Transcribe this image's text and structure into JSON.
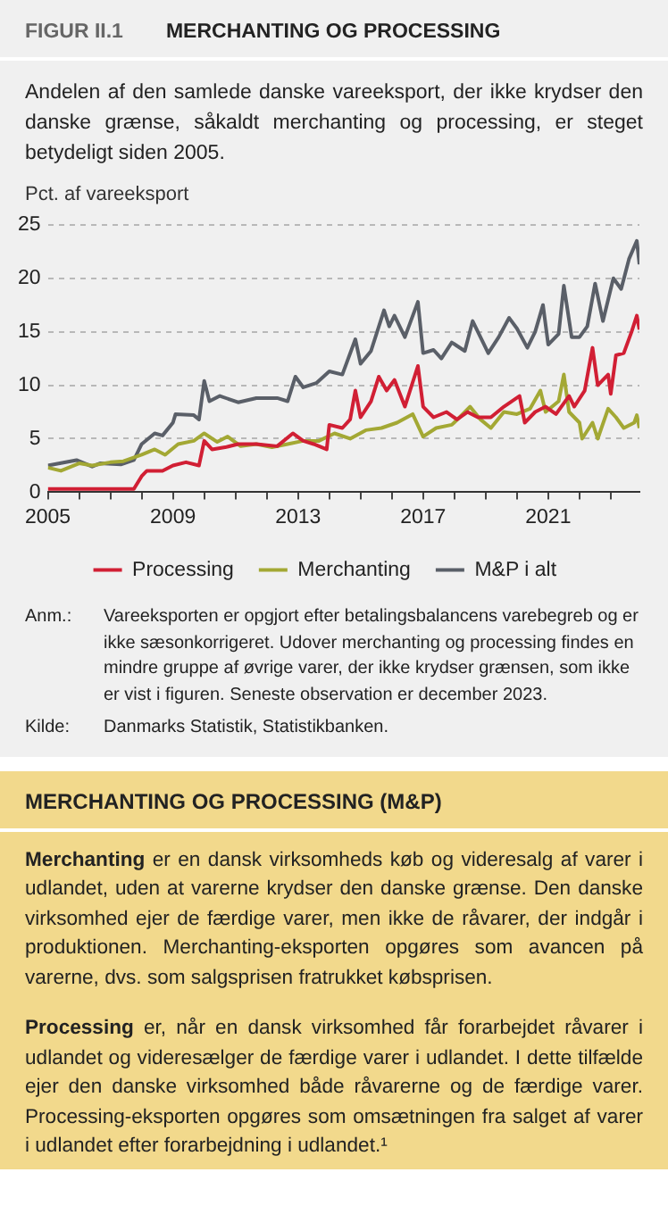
{
  "chart_data": {
    "type": "line",
    "title": "MERCHANTING OG PROCESSING",
    "subtitle": "Andelen af den samlede danske vareeksport, der ikke krydser den danske grænse, såkaldt merchanting og processing, er steget betydeligt siden 2005.",
    "ylabel": "Pct. af vareeksport",
    "xlim": [
      "2005-01",
      "2023-12"
    ],
    "xticks": [
      {
        "value": "2005",
        "label": "2005"
      },
      {
        "value": "2006",
        "label": null
      },
      {
        "value": "2007",
        "label": null
      },
      {
        "value": "2008",
        "label": null
      },
      {
        "value": "2009",
        "label": "2009"
      },
      {
        "value": "2010",
        "label": null
      },
      {
        "value": "2011",
        "label": null
      },
      {
        "value": "2012",
        "label": null
      },
      {
        "value": "2013",
        "label": "2013"
      },
      {
        "value": "2014",
        "label": null
      },
      {
        "value": "2015",
        "label": null
      },
      {
        "value": "2016",
        "label": null
      },
      {
        "value": "2017",
        "label": "2017"
      },
      {
        "value": "2018",
        "label": null
      },
      {
        "value": "2019",
        "label": null
      },
      {
        "value": "2020",
        "label": null
      },
      {
        "value": "2021",
        "label": "2021"
      },
      {
        "value": "2022",
        "label": null
      },
      {
        "value": "2023",
        "label": null
      }
    ],
    "ylim": [
      0,
      25
    ],
    "yticks": [
      0,
      5,
      10,
      15,
      20,
      25
    ],
    "grid": "y",
    "legend": "bottom",
    "series": [
      {
        "name": "Processing",
        "color": "#d11f34",
        "x": [
          "2005-01",
          "2006-06",
          "2007-10",
          "2008-01",
          "2008-03",
          "2008-09",
          "2009-01",
          "2009-06",
          "2009-11",
          "2010-01",
          "2010-04",
          "2010-09",
          "2011-02",
          "2011-09",
          "2012-05",
          "2012-11",
          "2013-03",
          "2013-07",
          "2013-12",
          "2014-01",
          "2014-06",
          "2014-09",
          "2014-11",
          "2015-01",
          "2015-05",
          "2015-08",
          "2015-11",
          "2016-02",
          "2016-06",
          "2016-11",
          "2017-01",
          "2017-05",
          "2017-10",
          "2018-02",
          "2018-06",
          "2018-10",
          "2019-03",
          "2019-08",
          "2019-11",
          "2020-02",
          "2020-04",
          "2020-08",
          "2020-12",
          "2021-04",
          "2021-09",
          "2021-11",
          "2022-03",
          "2022-06",
          "2022-08",
          "2022-12",
          "2023-01",
          "2023-03",
          "2023-06",
          "2023-09",
          "2023-11",
          "2023-12"
        ],
        "values": [
          0.3,
          0.3,
          0.3,
          1.5,
          2.0,
          2.0,
          2.5,
          2.8,
          2.5,
          4.8,
          4.0,
          4.2,
          4.5,
          4.5,
          4.3,
          5.5,
          4.8,
          4.5,
          4.0,
          6.3,
          6.0,
          6.8,
          9.5,
          7.0,
          8.5,
          10.8,
          9.5,
          10.5,
          8.0,
          11.8,
          8.0,
          7.0,
          7.5,
          6.8,
          7.5,
          7.0,
          7.0,
          8.0,
          8.5,
          9.0,
          6.5,
          7.5,
          8.0,
          7.3,
          9.0,
          8.0,
          9.5,
          13.5,
          10.0,
          11.0,
          9.2,
          12.8,
          13.0,
          15.0,
          16.5,
          15.2
        ]
      },
      {
        "name": "Merchanting",
        "color": "#a3a834",
        "x": [
          "2005-01",
          "2005-06",
          "2006-01",
          "2006-06",
          "2007-01",
          "2007-06",
          "2008-01",
          "2008-06",
          "2008-10",
          "2009-03",
          "2009-09",
          "2010-01",
          "2010-06",
          "2010-10",
          "2011-03",
          "2011-09",
          "2012-03",
          "2012-09",
          "2013-03",
          "2013-09",
          "2014-03",
          "2014-09",
          "2015-03",
          "2015-09",
          "2016-03",
          "2016-09",
          "2017-01",
          "2017-06",
          "2017-12",
          "2018-03",
          "2018-07",
          "2018-11",
          "2019-03",
          "2019-08",
          "2020-01",
          "2020-06",
          "2020-10",
          "2020-12",
          "2021-05",
          "2021-07",
          "2021-09",
          "2022-01",
          "2022-02",
          "2022-06",
          "2022-08",
          "2022-12",
          "2023-03",
          "2023-06",
          "2023-10",
          "2023-11",
          "2023-12"
        ],
        "values": [
          2.3,
          2.0,
          2.7,
          2.5,
          2.8,
          2.9,
          3.5,
          4.0,
          3.5,
          4.5,
          4.8,
          5.5,
          4.7,
          5.2,
          4.3,
          4.5,
          4.2,
          4.5,
          4.8,
          4.8,
          5.5,
          5.0,
          5.8,
          6.0,
          6.5,
          7.3,
          5.2,
          6.0,
          6.3,
          7.0,
          8.0,
          6.8,
          6.0,
          7.5,
          7.3,
          7.8,
          9.5,
          7.5,
          8.5,
          11.0,
          7.5,
          6.5,
          5.0,
          6.5,
          5.0,
          7.8,
          7.0,
          6.0,
          6.5,
          7.2,
          6.0
        ]
      },
      {
        "name": "M&P i alt",
        "color": "#5a5f68",
        "x": [
          "2005-01",
          "2005-12",
          "2006-06",
          "2006-09",
          "2007-05",
          "2007-10",
          "2008-01",
          "2008-06",
          "2008-09",
          "2009-01",
          "2009-02",
          "2009-09",
          "2009-11",
          "2010-01",
          "2010-03",
          "2010-07",
          "2011-02",
          "2011-09",
          "2012-05",
          "2012-09",
          "2012-12",
          "2013-03",
          "2013-08",
          "2014-01",
          "2014-06",
          "2014-11",
          "2015-01",
          "2015-05",
          "2015-10",
          "2015-12",
          "2016-02",
          "2016-06",
          "2016-11",
          "2017-01",
          "2017-05",
          "2017-08",
          "2017-12",
          "2018-05",
          "2018-08",
          "2018-11",
          "2019-02",
          "2019-06",
          "2019-10",
          "2020-01",
          "2020-05",
          "2020-08",
          "2020-11",
          "2021-01",
          "2021-05",
          "2021-07",
          "2021-10",
          "2022-01",
          "2022-04",
          "2022-07",
          "2022-10",
          "2022-12",
          "2023-02",
          "2023-05",
          "2023-08",
          "2023-11",
          "2023-12"
        ],
        "values": [
          2.5,
          3.0,
          2.4,
          2.7,
          2.6,
          3.0,
          4.5,
          5.5,
          5.3,
          6.5,
          7.3,
          7.2,
          6.8,
          10.4,
          8.5,
          9.0,
          8.4,
          8.8,
          8.8,
          8.5,
          10.8,
          9.8,
          10.2,
          11.3,
          11.0,
          14.3,
          12.0,
          13.2,
          17.0,
          15.5,
          16.5,
          14.5,
          17.8,
          13.0,
          13.3,
          12.5,
          14.0,
          13.2,
          16.0,
          14.5,
          13.0,
          14.5,
          16.3,
          15.3,
          13.5,
          15.0,
          17.5,
          13.8,
          14.8,
          19.3,
          14.5,
          14.5,
          15.5,
          19.5,
          16.0,
          18.0,
          20.0,
          19.0,
          21.8,
          23.5,
          21.3
        ]
      }
    ],
    "annotations": [
      "FIGUR II.1",
      "Anm.:",
      "Vareeksporten er opgjort efter betalingsbalancens varebegreb og er ikke sæsonkorrigeret. Udover merchanting og processing findes en mindre gruppe af øvrige varer, der ikke krydser grænsen, som ikke er vist i figuren. Seneste observation er december 2023.",
      "Kilde:",
      "Danmarks Statistik, Statistikbanken.",
      "MERCHANTING OG PROCESSING (M&P)",
      "Merchanting",
      " er en dansk virksomheds køb og videresalg af varer i udlandet, uden at varerne krydser den danske grænse. Den danske virksomhed ejer de færdige varer, men ikke de råvarer, der indgår i produktionen. Merchanting-eksporten opgøres som avancen på varerne, dvs. som salgsprisen fratrukket købsprisen.",
      "Processing",
      " er, når en dansk virksomhed får forarbejdet råvarer i udlandet og videresælger de færdige varer i udlandet. I dette tilfælde ejer den danske virksomhed både råvarerne og de færdige varer. Processing-eksporten opgøres som omsætningen fra salget af varer i udlandet efter forarbejdning i udlandet.¹"
    ]
  }
}
